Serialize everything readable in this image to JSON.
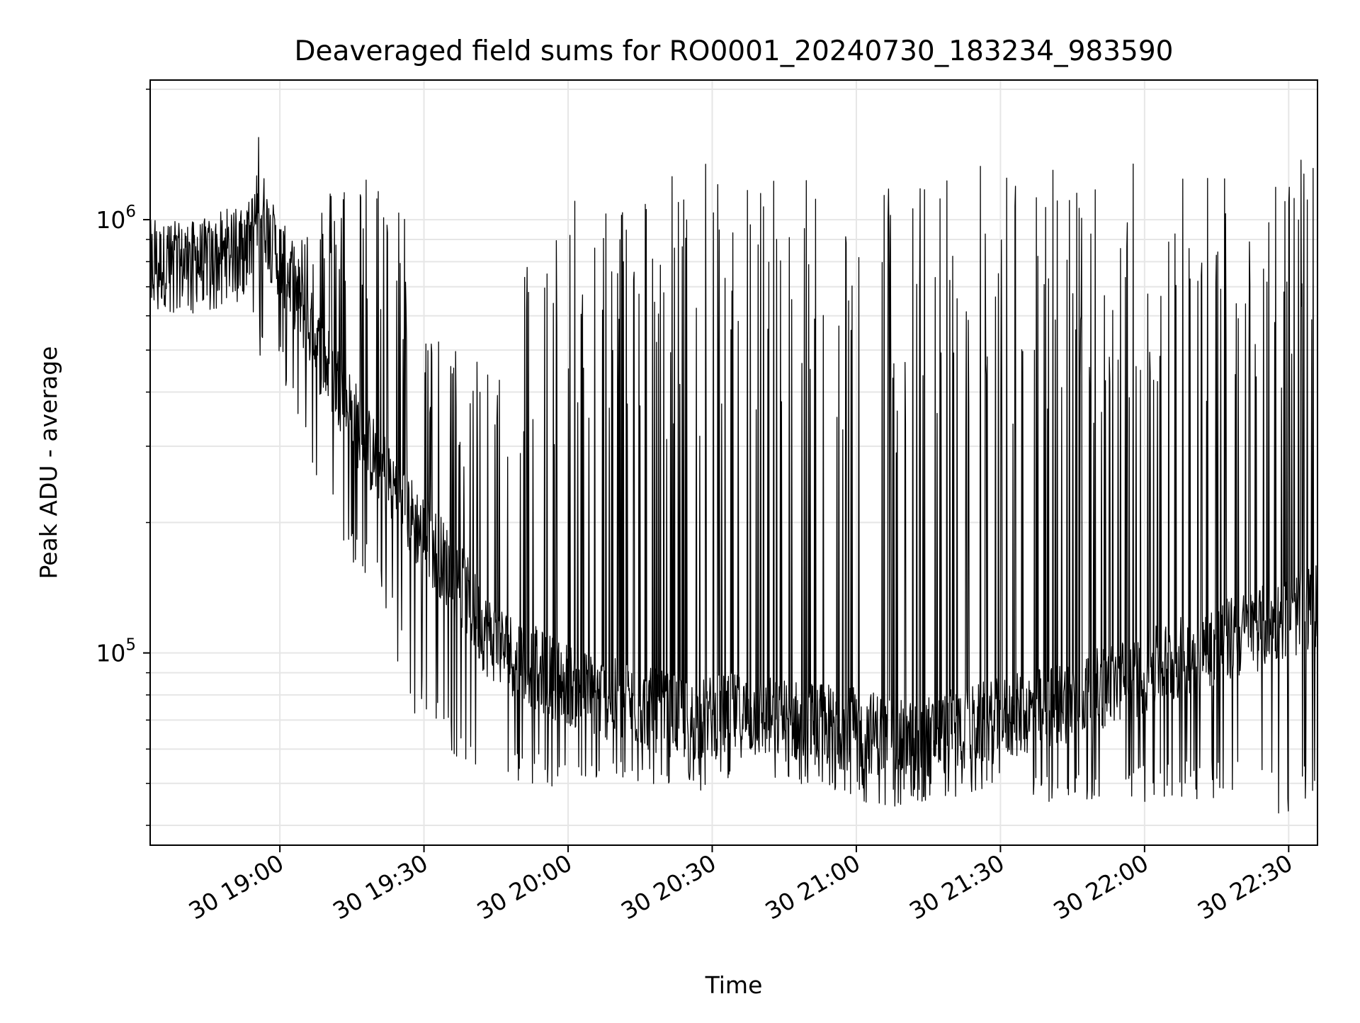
{
  "chart_data": {
    "type": "line",
    "title": "Deaveraged field sums for RO0001_20240730_183234_983590",
    "xlabel": "Time",
    "ylabel": "Peak ADU - average",
    "y_scale": "log",
    "grid": true,
    "legend": "none",
    "x_range": [
      "2024-07-30 18:33",
      "2024-07-30 22:36"
    ],
    "ylim": [
      36000,
      2100000
    ],
    "x_ticks": [
      {
        "time": "2024-07-30 19:00",
        "label": "30 19:00"
      },
      {
        "time": "2024-07-30 19:30",
        "label": "30 19:30"
      },
      {
        "time": "2024-07-30 20:00",
        "label": "30 20:00"
      },
      {
        "time": "2024-07-30 20:30",
        "label": "30 20:30"
      },
      {
        "time": "2024-07-30 21:00",
        "label": "30 21:00"
      },
      {
        "time": "2024-07-30 21:30",
        "label": "30 21:30"
      },
      {
        "time": "2024-07-30 22:00",
        "label": "30 22:00"
      },
      {
        "time": "2024-07-30 22:30",
        "label": "30 22:30"
      }
    ],
    "y_ticks": [
      {
        "value": 100000,
        "base": "10",
        "exp": "5"
      },
      {
        "value": 1000000,
        "base": "10",
        "exp": "6"
      }
    ],
    "line_color": "#000000",
    "series": [
      {
        "x": [
          "2024-07-30 18:33",
          "2024-07-30 18:38",
          "2024-07-30 18:43",
          "2024-07-30 18:48",
          "2024-07-30 18:53",
          "2024-07-30 18:56",
          "2024-07-30 18:58",
          "2024-07-30 19:03",
          "2024-07-30 19:08",
          "2024-07-30 19:13",
          "2024-07-30 19:18",
          "2024-07-30 19:23",
          "2024-07-30 19:28",
          "2024-07-30 19:33",
          "2024-07-30 19:38",
          "2024-07-30 19:43",
          "2024-07-30 19:48",
          "2024-07-30 19:55",
          "2024-07-30 20:05",
          "2024-07-30 20:15",
          "2024-07-30 20:25",
          "2024-07-30 20:35",
          "2024-07-30 20:45",
          "2024-07-30 20:55",
          "2024-07-30 21:05",
          "2024-07-30 21:10",
          "2024-07-30 21:20",
          "2024-07-30 21:30",
          "2024-07-30 21:40",
          "2024-07-30 21:50",
          "2024-07-30 22:00",
          "2024-07-30 22:10",
          "2024-07-30 22:20",
          "2024-07-30 22:30",
          "2024-07-30 22:36"
        ],
        "y": [
          800000,
          780000,
          800000,
          820000,
          850000,
          1100000,
          900000,
          700000,
          500000,
          400000,
          300000,
          250000,
          200000,
          170000,
          140000,
          110000,
          100000,
          90000,
          80000,
          75000,
          70000,
          72000,
          70000,
          68000,
          65000,
          62000,
          66000,
          70000,
          75000,
          82000,
          90000,
          100000,
          110000,
          120000,
          130000
        ],
        "y_high": [
          1100000,
          1000000,
          950000,
          1050000,
          1100000,
          1700000,
          1050000,
          900000,
          1100000,
          1300000,
          1350000,
          1350000,
          900000,
          550000,
          500000,
          550000,
          800000,
          1000000,
          1200000,
          1300000,
          1350000,
          1450000,
          1400000,
          1350000,
          1300000,
          1250000,
          1350000,
          1400000,
          1350000,
          1400000,
          1400000,
          1400000,
          1400000,
          1400000,
          1350000
        ],
        "y_low": [
          620000,
          580000,
          600000,
          630000,
          650000,
          480000,
          520000,
          350000,
          250000,
          170000,
          150000,
          110000,
          70000,
          65000,
          55000,
          52000,
          50000,
          48000,
          50000,
          50000,
          48000,
          47000,
          47000,
          46000,
          44000,
          44000,
          46000,
          47000,
          45000,
          44000,
          45000,
          46000,
          45000,
          42000,
          43000
        ]
      }
    ]
  }
}
